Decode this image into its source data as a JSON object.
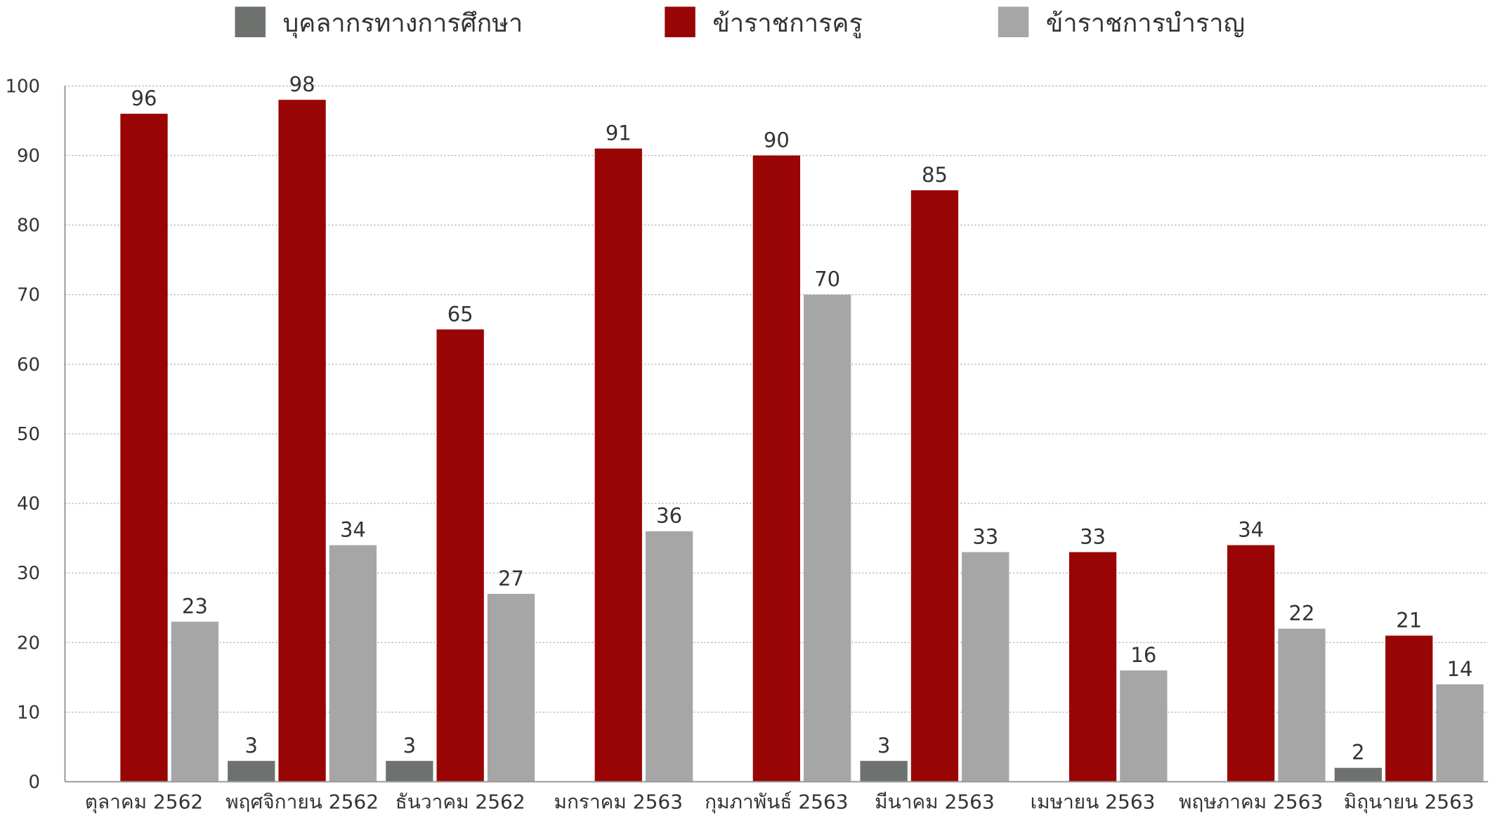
{
  "colors": {
    "series": [
      "#6d726f",
      "#990505",
      "#a6a6a6"
    ],
    "grid": "#aaaaaa",
    "axis": "#999999",
    "text": "#333333"
  },
  "chart_data": {
    "type": "bar",
    "categories": [
      "ตุลาคม 2562",
      "พฤศจิกายน 2562",
      "ธันวาคม 2562",
      "มกราคม 2563",
      "กุมภาพันธ์ 2563",
      "มีนาคม 2563",
      "เมษายน 2563",
      "พฤษภาคม 2563",
      "มิถุนายน 2563"
    ],
    "series": [
      {
        "name": "บุคลากรทางการศึกษา",
        "values": [
          null,
          3,
          3,
          null,
          null,
          3,
          null,
          null,
          2
        ]
      },
      {
        "name": "ข้าราชการครู",
        "values": [
          96,
          98,
          65,
          91,
          90,
          85,
          33,
          34,
          21
        ]
      },
      {
        "name": "ข้าราชการบำราญ",
        "values": [
          23,
          34,
          27,
          36,
          70,
          33,
          16,
          22,
          14
        ]
      }
    ],
    "ylim": [
      0,
      100
    ],
    "yticks": [
      0,
      10,
      20,
      30,
      40,
      50,
      60,
      70,
      80,
      90,
      100
    ],
    "grid": true,
    "legend": "top-center",
    "data_labels": true
  }
}
